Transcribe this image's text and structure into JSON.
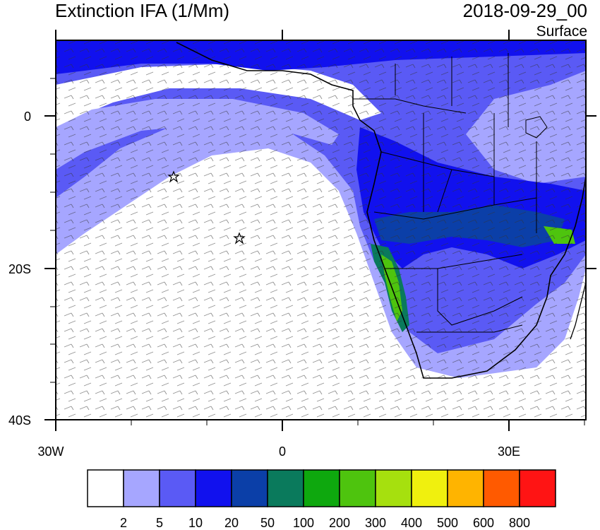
{
  "header": {
    "title": "Extinction IFA (1/Mm)",
    "date": "2018-09-29_00",
    "level": "Surface"
  },
  "map": {
    "lon_range": [
      -30,
      40
    ],
    "lat_range": [
      -40,
      10
    ],
    "lat_ticks": [
      "0",
      "20S",
      "40S"
    ],
    "lon_ticks": [
      "30W",
      "0",
      "30E"
    ],
    "stations": [
      "station-star-1",
      "station-star-2"
    ]
  },
  "colorbar": {
    "labels": [
      "2",
      "5",
      "10",
      "20",
      "50",
      "100",
      "200",
      "300",
      "400",
      "500",
      "600",
      "800"
    ],
    "colors": [
      "#ffffff",
      "#a6a6ff",
      "#5a5af5",
      "#1111ee",
      "#0b3fa8",
      "#0a7a5c",
      "#0ea80e",
      "#4ec40e",
      "#a6e00e",
      "#f0f00e",
      "#ffb400",
      "#ff5a00",
      "#ff1414"
    ]
  }
}
